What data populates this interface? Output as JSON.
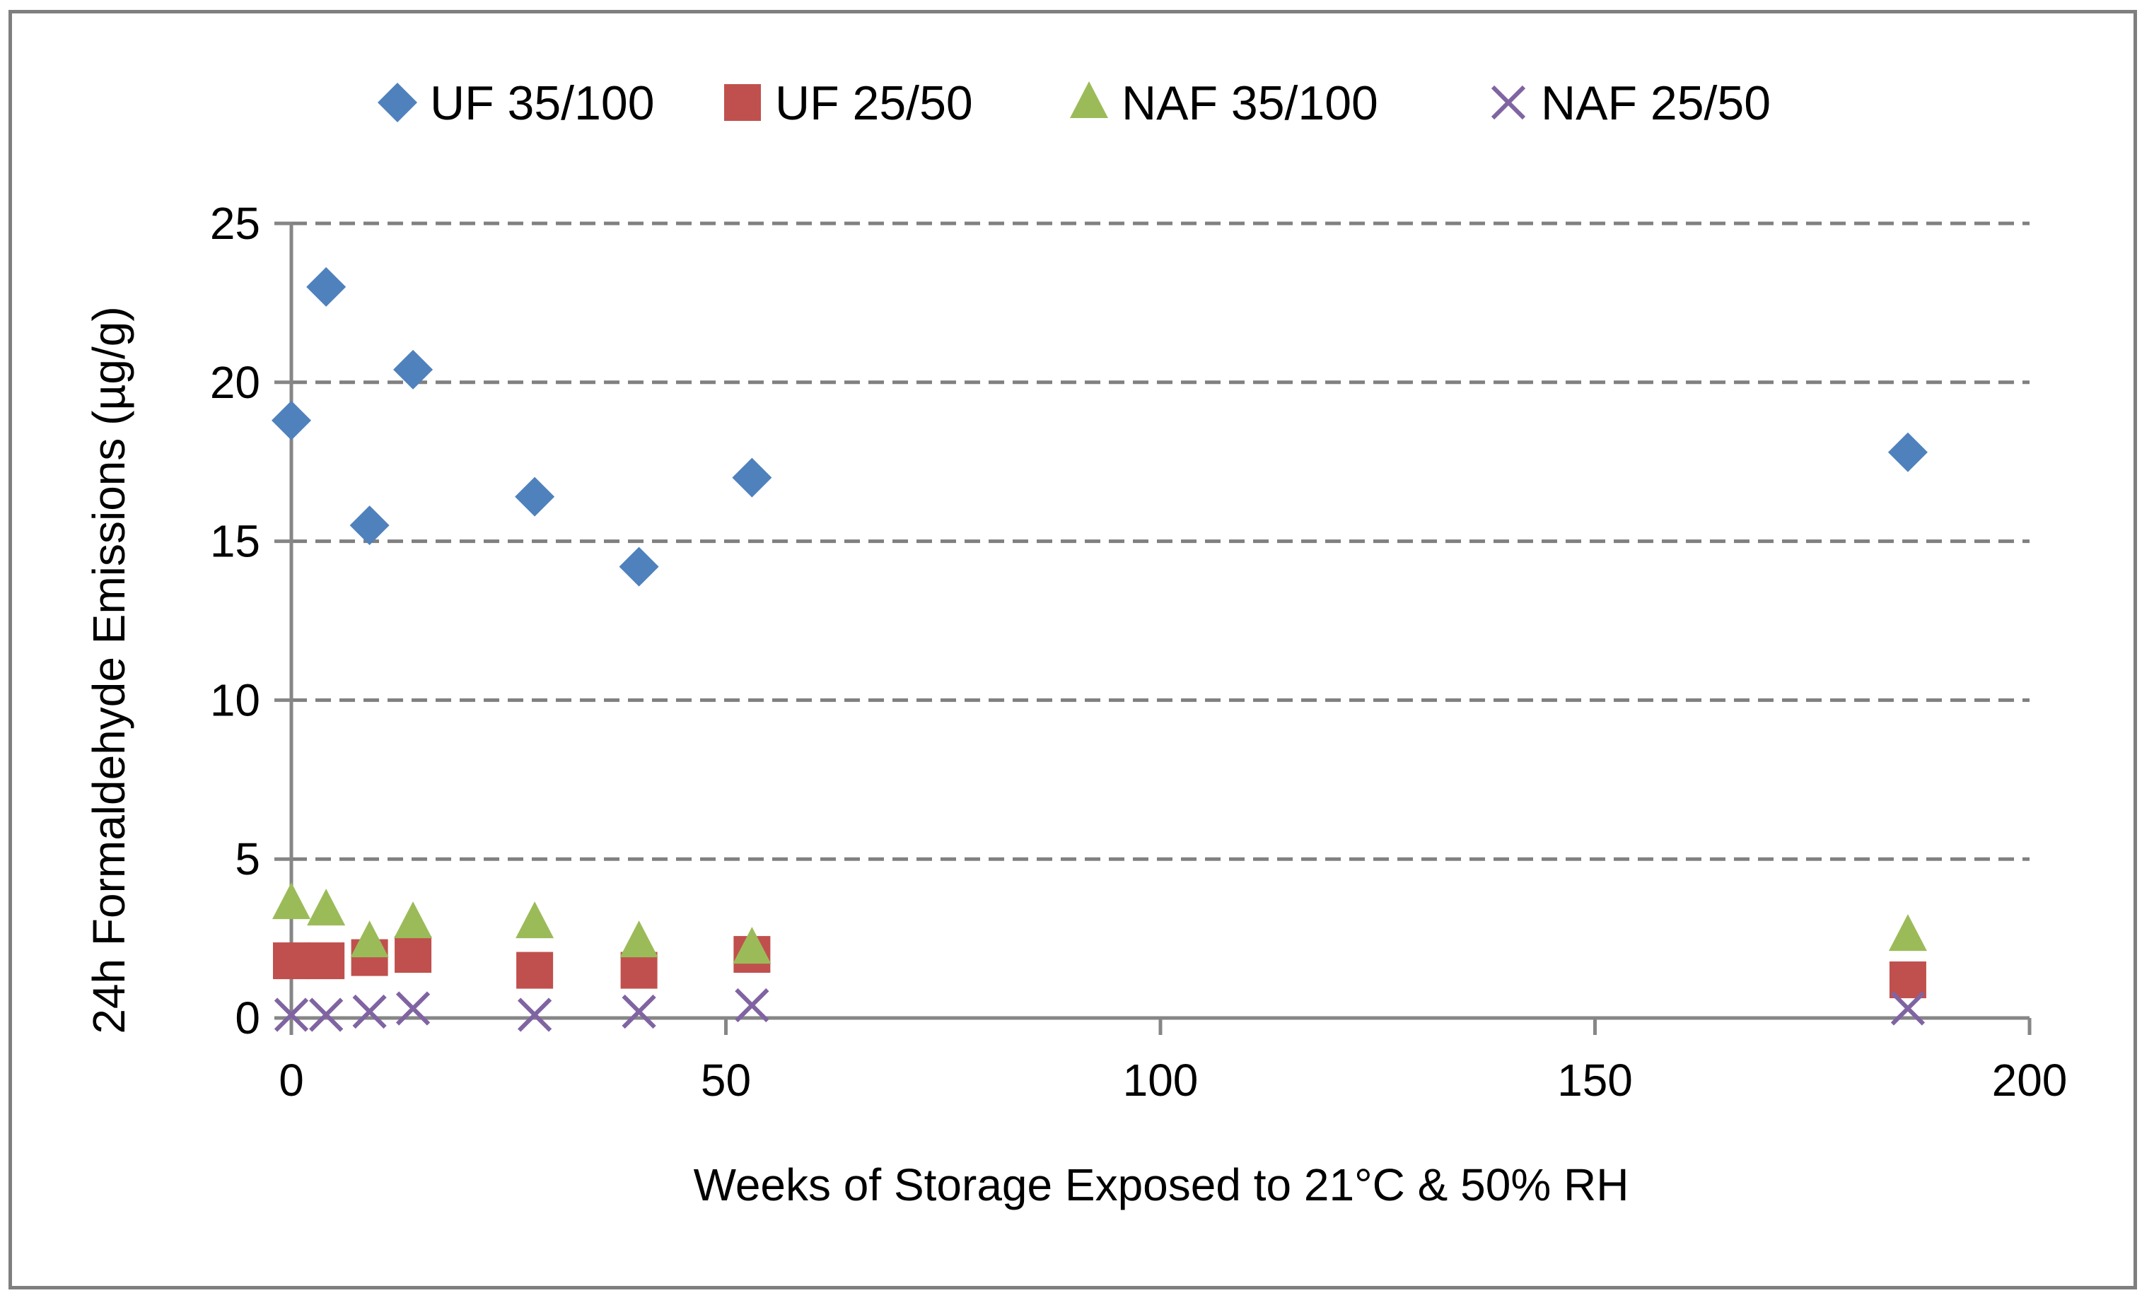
{
  "chart_data": {
    "type": "scatter",
    "title": "",
    "xlabel": "Weeks of Storage Exposed to 21°C & 50% RH",
    "ylabel": "24h Formaldehyde Emissions (µg/g)",
    "xlim": [
      0,
      200
    ],
    "ylim": [
      0,
      25
    ],
    "xticks": [
      0,
      50,
      100,
      150,
      200
    ],
    "yticks": [
      0,
      5,
      10,
      15,
      20,
      25
    ],
    "grid": "horizontal-dashed",
    "legend_position": "top",
    "series": [
      {
        "name": "UF 35/100",
        "marker": "diamond",
        "color": "#4f81bd",
        "points": [
          [
            0,
            18.8
          ],
          [
            4,
            23.0
          ],
          [
            9,
            15.5
          ],
          [
            14,
            20.4
          ],
          [
            28,
            16.4
          ],
          [
            40,
            14.2
          ],
          [
            53,
            17.0
          ],
          [
            186,
            17.8
          ]
        ]
      },
      {
        "name": "UF 25/50",
        "marker": "square",
        "color": "#c0504d",
        "points": [
          [
            0,
            1.8
          ],
          [
            4,
            1.8
          ],
          [
            9,
            1.9
          ],
          [
            14,
            2.0
          ],
          [
            28,
            1.5
          ],
          [
            40,
            1.5
          ],
          [
            53,
            2.0
          ],
          [
            186,
            1.2
          ]
        ]
      },
      {
        "name": "NAF 35/100",
        "marker": "triangle",
        "color": "#9bbb59",
        "points": [
          [
            0,
            3.6
          ],
          [
            4,
            3.4
          ],
          [
            9,
            2.4
          ],
          [
            14,
            3.0
          ],
          [
            28,
            3.0
          ],
          [
            40,
            2.4
          ],
          [
            53,
            2.2
          ],
          [
            186,
            2.6
          ]
        ]
      },
      {
        "name": "NAF 25/50",
        "marker": "x",
        "color": "#8064a2",
        "points": [
          [
            0,
            0.1
          ],
          [
            4,
            0.1
          ],
          [
            9,
            0.2
          ],
          [
            14,
            0.3
          ],
          [
            28,
            0.1
          ],
          [
            40,
            0.2
          ],
          [
            53,
            0.4
          ],
          [
            186,
            0.3
          ]
        ]
      }
    ]
  }
}
